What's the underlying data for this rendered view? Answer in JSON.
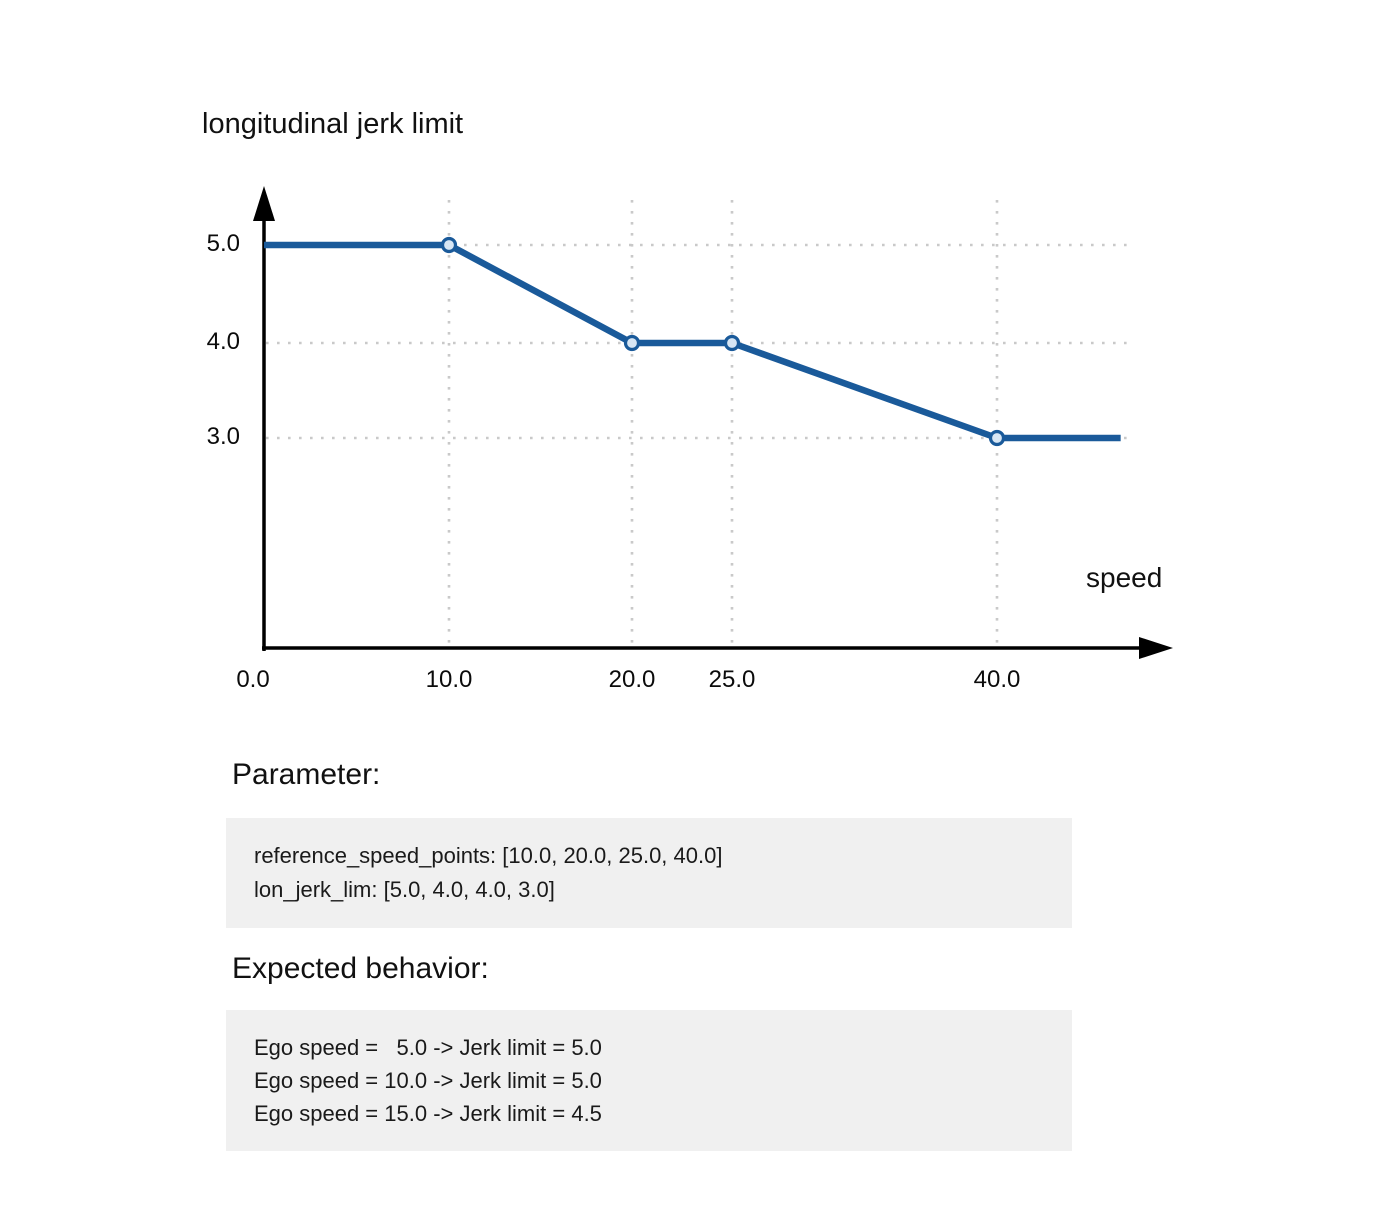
{
  "chart": {
    "title": "longitudinal jerk limit",
    "x_axis_label": "speed"
  },
  "chart_data": {
    "type": "line",
    "title": "longitudinal jerk limit",
    "xlabel": "speed",
    "ylabel": "longitudinal jerk limit",
    "x": [
      0,
      10,
      20,
      25,
      40,
      47
    ],
    "y": [
      5.0,
      5.0,
      4.0,
      4.0,
      3.0,
      3.0
    ],
    "markers": {
      "x": [
        10,
        20,
        25,
        40
      ],
      "y": [
        5.0,
        4.0,
        4.0,
        3.0
      ]
    },
    "x_ticks": [
      {
        "value": 0,
        "label": "0.0"
      },
      {
        "value": 10,
        "label": "10.0"
      },
      {
        "value": 20,
        "label": "20.0"
      },
      {
        "value": 25,
        "label": "25.0"
      },
      {
        "value": 40,
        "label": "40.0"
      }
    ],
    "y_ticks": [
      {
        "value": 5.0,
        "label": "5.0"
      },
      {
        "value": 4.0,
        "label": "4.0"
      },
      {
        "value": 3.0,
        "label": "3.0"
      }
    ],
    "xlim": [
      0,
      47
    ],
    "ylim": [
      0,
      5.6
    ],
    "grid": true,
    "legend": false,
    "colors": {
      "line": "#1a5a9a",
      "marker_fill": "#d7e6f4",
      "axis": "#000000",
      "grid": "#c9c9c9"
    }
  },
  "parameter": {
    "heading": "Parameter:",
    "lines": [
      "reference_speed_points: [10.0, 20.0, 25.0, 40.0]",
      "lon_jerk_lim: [5.0, 4.0, 4.0, 3.0]"
    ]
  },
  "expected": {
    "heading": "Expected behavior:",
    "lines": [
      "Ego speed =   5.0 -> Jerk limit = 5.0",
      "Ego speed = 10.0 -> Jerk limit = 5.0",
      "Ego speed = 15.0 -> Jerk limit = 4.5"
    ]
  }
}
